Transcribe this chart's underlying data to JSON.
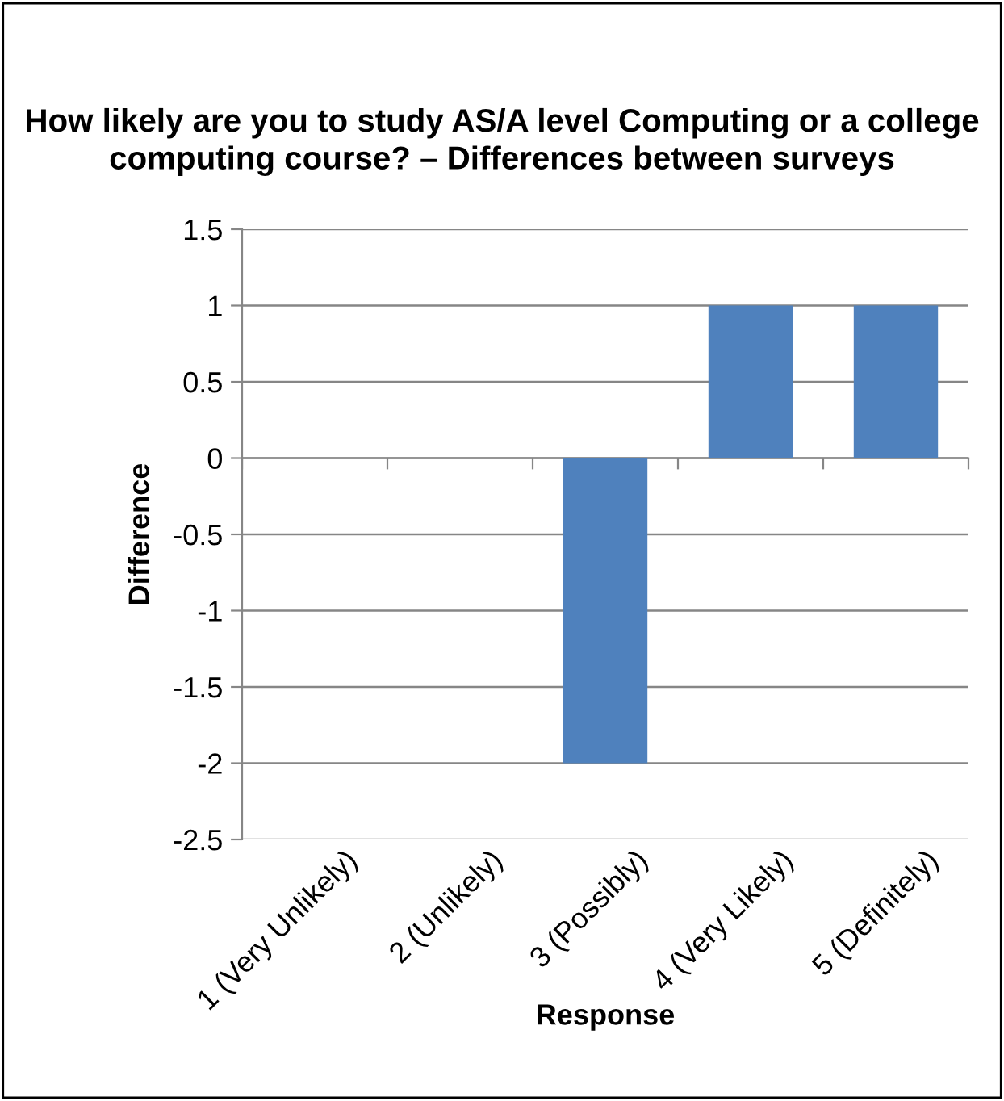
{
  "chart_data": {
    "type": "bar",
    "title": "How likely are you to study AS/A level Computing or a college computing course? – Differences between surveys",
    "xlabel": "Response",
    "ylabel": "Difference",
    "categories": [
      "1 (Very Unlikely)",
      "2 (Unlikely)",
      "3 (Possibly)",
      "4 (Very Likely)",
      "5 (Definitely)"
    ],
    "values": [
      0,
      0,
      -2,
      1,
      1
    ],
    "color": "#4f81bd",
    "ylim": [
      -2.5,
      1.5
    ],
    "yticks": [
      -2.5,
      -2,
      -1.5,
      -1,
      -0.5,
      0,
      0.5,
      1,
      1.5
    ],
    "grid": "y"
  }
}
